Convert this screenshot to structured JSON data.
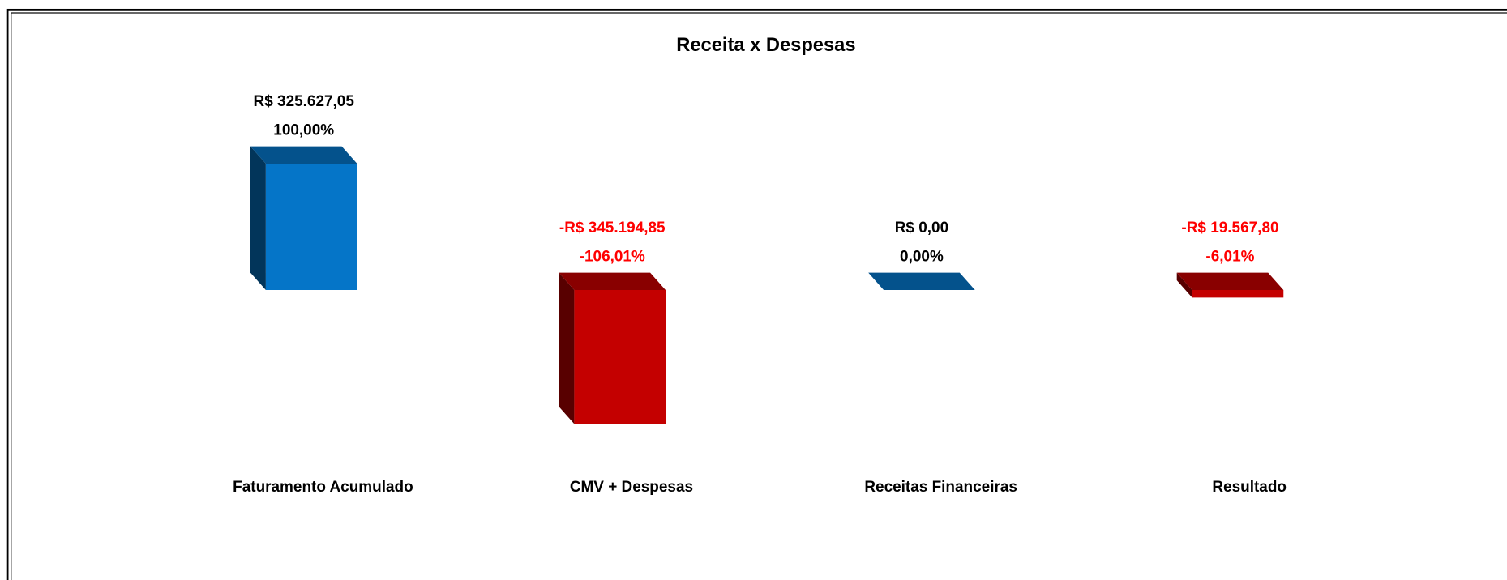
{
  "chart_data": {
    "type": "bar3d",
    "title": "Receita x Despesas",
    "categories": [
      "Faturamento Acumulado",
      "CMV + Despesas",
      "Receitas Financeiras",
      "Resultado"
    ],
    "values": [
      325627.05,
      -345194.85,
      0,
      -19567.8
    ],
    "value_labels": [
      "R$ 325.627,05",
      "-R$ 345.194,85",
      "R$ 0,00",
      "-R$ 19.567,80"
    ],
    "shares": [
      100,
      -106.01,
      0,
      -6.01
    ],
    "share_labels": [
      "100,00%",
      "-106,01%",
      "0,00%",
      "-6,01%"
    ],
    "colors": [
      "#0575c8",
      "#c40000",
      "#0575c8",
      "#c40000"
    ],
    "label_color": "#000000",
    "negative_label_color": "#ff0000"
  }
}
